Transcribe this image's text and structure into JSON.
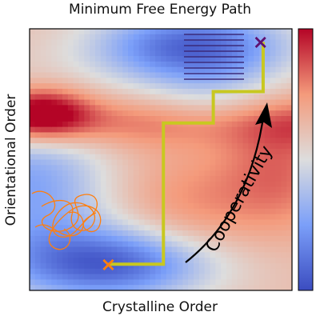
{
  "chart_data": {
    "type": "heatmap",
    "title": "Minimum Free Energy Path",
    "xlabel": "Crystalline Order",
    "ylabel": "Orientational Order",
    "colormap": "coolwarm",
    "colorbar": {
      "ticks": []
    },
    "xlim": [
      0,
      1
    ],
    "ylim": [
      0,
      1
    ],
    "states": {
      "start": {
        "label": "×",
        "x": 0.3,
        "y": 0.1,
        "color": "#ff7f0e"
      },
      "end": {
        "label": "×",
        "x": 0.88,
        "y": 0.95,
        "color": "#5e1070"
      }
    },
    "path": {
      "color": "#c8c820",
      "points": [
        [
          0.3,
          0.1
        ],
        [
          0.51,
          0.1
        ],
        [
          0.51,
          0.64
        ],
        [
          0.7,
          0.64
        ],
        [
          0.7,
          0.76
        ],
        [
          0.89,
          0.76
        ],
        [
          0.89,
          0.95
        ]
      ]
    },
    "annotation": {
      "text": "Cooperativity",
      "color": "#000000"
    },
    "insets": [
      "disordered-chain-icon",
      "ordered-lamella-icon"
    ],
    "colors": {
      "low": "#3b4cc0",
      "mid": "#dddddd",
      "high": "#b40426"
    }
  }
}
